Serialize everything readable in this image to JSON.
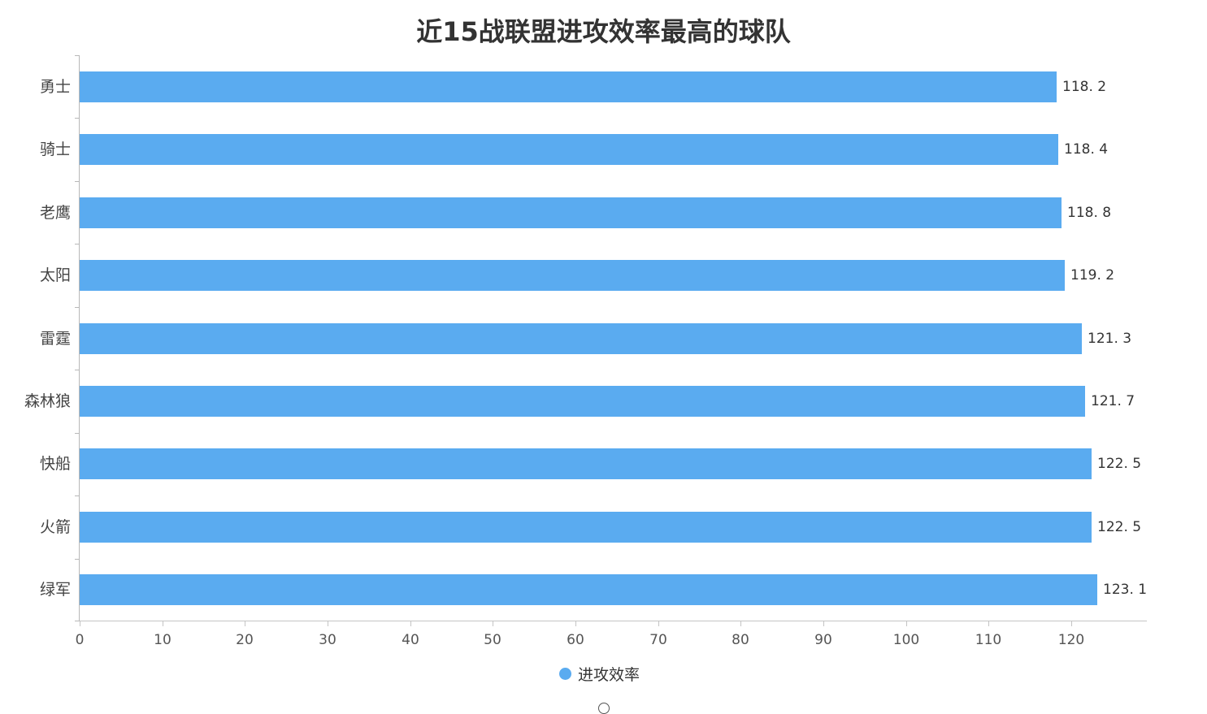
{
  "title": "近15战联盟进攻效率最高的球队",
  "legend": {
    "label": "进攻效率",
    "color": "#5aabf0"
  },
  "chart_data": {
    "type": "bar",
    "orientation": "horizontal",
    "title": "近15战联盟进攻效率最高的球队",
    "xlabel": "",
    "ylabel": "",
    "categories": [
      "勇士",
      "骑士",
      "老鹰",
      "太阳",
      "雷霆",
      "森林狼",
      "快船",
      "火箭",
      "绿军"
    ],
    "series": [
      {
        "name": "进攻效率",
        "color": "#5aabf0",
        "values": [
          118.2,
          118.4,
          118.8,
          119.2,
          121.3,
          121.7,
          122.5,
          122.5,
          123.1
        ]
      }
    ],
    "value_labels": [
      "118. 2",
      "118. 4",
      "118. 8",
      "119. 2",
      "121. 3",
      "121. 7",
      "122. 5",
      "122. 5",
      "123. 1"
    ],
    "x_ticks": [
      "0",
      "10",
      "20",
      "30",
      "40",
      "50",
      "60",
      "70",
      "80",
      "90",
      "100",
      "110",
      "120"
    ],
    "xlim": [
      0,
      129
    ],
    "grid": false,
    "legend_position": "bottom"
  }
}
